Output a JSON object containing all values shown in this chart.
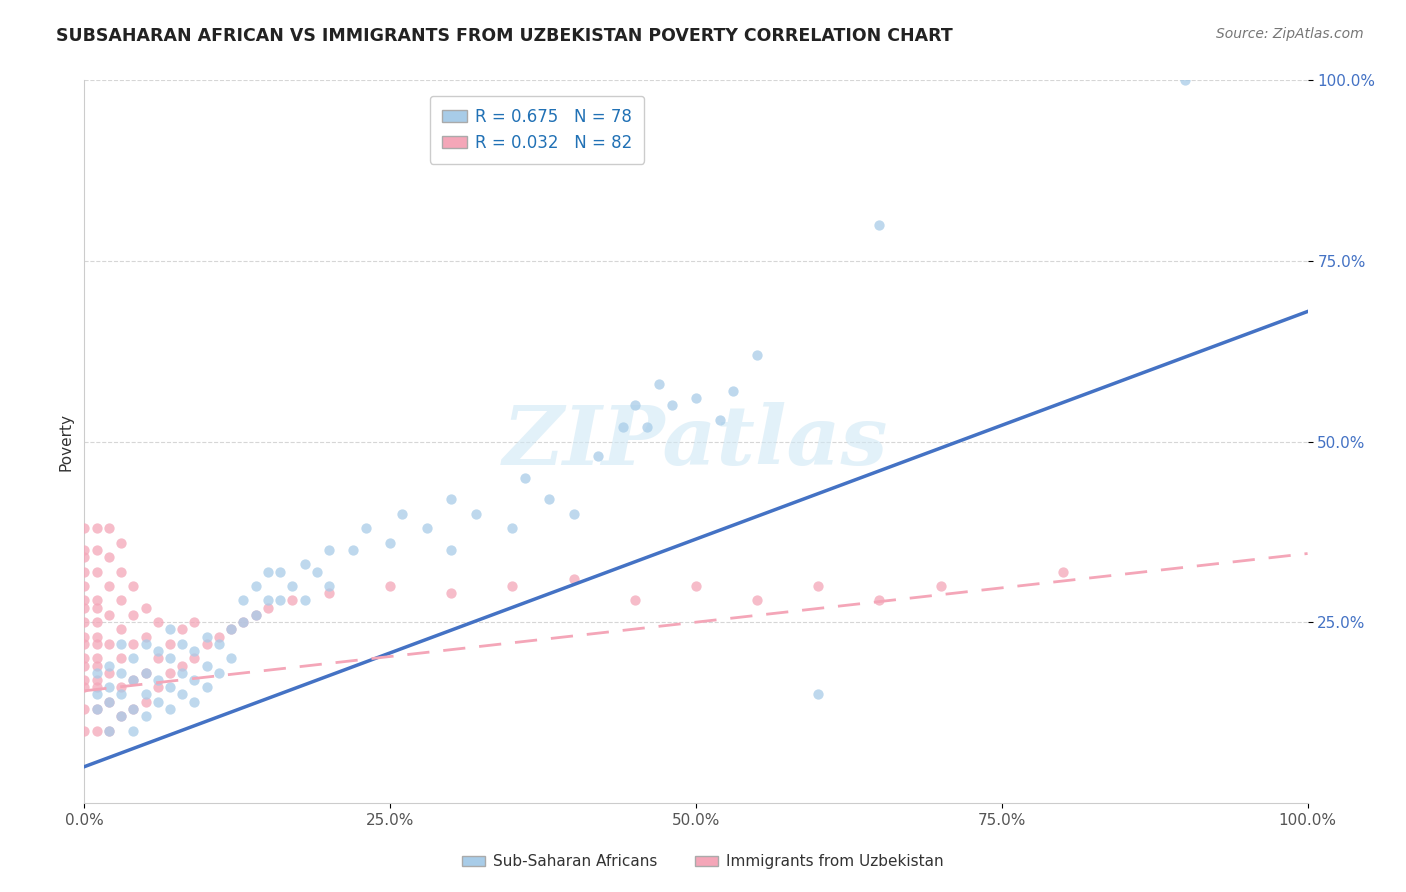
{
  "title": "SUBSAHARAN AFRICAN VS IMMIGRANTS FROM UZBEKISTAN POVERTY CORRELATION CHART",
  "source": "Source: ZipAtlas.com",
  "ylabel": "Poverty",
  "watermark": "ZIPatlas",
  "legend1_label": "Sub-Saharan Africans",
  "legend2_label": "Immigrants from Uzbekistan",
  "R1": 0.675,
  "N1": 78,
  "R2": 0.032,
  "N2": 82,
  "color1": "#a8cce8",
  "color2": "#f4a6b8",
  "color1_line": "#4472c4",
  "color2_line": "#f4a6b8",
  "xlim": [
    0,
    1.0
  ],
  "ylim": [
    0,
    1.0
  ],
  "xticks": [
    0.0,
    0.25,
    0.5,
    0.75,
    1.0
  ],
  "yticks": [
    0.25,
    0.5,
    0.75,
    1.0
  ],
  "xticklabels": [
    "0.0%",
    "25.0%",
    "50.0%",
    "75.0%",
    "100.0%"
  ],
  "yticklabels": [
    "25.0%",
    "50.0%",
    "75.0%",
    "100.0%"
  ],
  "blue_line_x": [
    0.0,
    1.0
  ],
  "blue_line_y": [
    0.05,
    0.68
  ],
  "pink_line_x": [
    0.0,
    1.0
  ],
  "pink_line_y": [
    0.155,
    0.345
  ],
  "blue_scatter": [
    [
      0.01,
      0.13
    ],
    [
      0.01,
      0.15
    ],
    [
      0.01,
      0.18
    ],
    [
      0.02,
      0.1
    ],
    [
      0.02,
      0.14
    ],
    [
      0.02,
      0.16
    ],
    [
      0.02,
      0.19
    ],
    [
      0.03,
      0.12
    ],
    [
      0.03,
      0.15
    ],
    [
      0.03,
      0.18
    ],
    [
      0.03,
      0.22
    ],
    [
      0.04,
      0.1
    ],
    [
      0.04,
      0.13
    ],
    [
      0.04,
      0.17
    ],
    [
      0.04,
      0.2
    ],
    [
      0.05,
      0.12
    ],
    [
      0.05,
      0.15
    ],
    [
      0.05,
      0.18
    ],
    [
      0.05,
      0.22
    ],
    [
      0.06,
      0.14
    ],
    [
      0.06,
      0.17
    ],
    [
      0.06,
      0.21
    ],
    [
      0.07,
      0.13
    ],
    [
      0.07,
      0.16
    ],
    [
      0.07,
      0.2
    ],
    [
      0.07,
      0.24
    ],
    [
      0.08,
      0.15
    ],
    [
      0.08,
      0.18
    ],
    [
      0.08,
      0.22
    ],
    [
      0.09,
      0.14
    ],
    [
      0.09,
      0.17
    ],
    [
      0.09,
      0.21
    ],
    [
      0.1,
      0.16
    ],
    [
      0.1,
      0.19
    ],
    [
      0.1,
      0.23
    ],
    [
      0.11,
      0.18
    ],
    [
      0.11,
      0.22
    ],
    [
      0.12,
      0.2
    ],
    [
      0.12,
      0.24
    ],
    [
      0.13,
      0.25
    ],
    [
      0.13,
      0.28
    ],
    [
      0.14,
      0.26
    ],
    [
      0.14,
      0.3
    ],
    [
      0.15,
      0.28
    ],
    [
      0.15,
      0.32
    ],
    [
      0.16,
      0.28
    ],
    [
      0.16,
      0.32
    ],
    [
      0.17,
      0.3
    ],
    [
      0.18,
      0.28
    ],
    [
      0.18,
      0.33
    ],
    [
      0.19,
      0.32
    ],
    [
      0.2,
      0.3
    ],
    [
      0.2,
      0.35
    ],
    [
      0.22,
      0.35
    ],
    [
      0.23,
      0.38
    ],
    [
      0.25,
      0.36
    ],
    [
      0.26,
      0.4
    ],
    [
      0.28,
      0.38
    ],
    [
      0.3,
      0.35
    ],
    [
      0.3,
      0.42
    ],
    [
      0.32,
      0.4
    ],
    [
      0.35,
      0.38
    ],
    [
      0.36,
      0.45
    ],
    [
      0.38,
      0.42
    ],
    [
      0.4,
      0.4
    ],
    [
      0.42,
      0.48
    ],
    [
      0.44,
      0.52
    ],
    [
      0.45,
      0.55
    ],
    [
      0.46,
      0.52
    ],
    [
      0.47,
      0.58
    ],
    [
      0.48,
      0.55
    ],
    [
      0.5,
      0.56
    ],
    [
      0.52,
      0.53
    ],
    [
      0.53,
      0.57
    ],
    [
      0.55,
      0.62
    ],
    [
      0.9,
      1.0
    ],
    [
      0.65,
      0.8
    ],
    [
      0.6,
      0.15
    ]
  ],
  "pink_scatter": [
    [
      0.0,
      0.1
    ],
    [
      0.0,
      0.13
    ],
    [
      0.0,
      0.16
    ],
    [
      0.0,
      0.19
    ],
    [
      0.0,
      0.22
    ],
    [
      0.0,
      0.25
    ],
    [
      0.0,
      0.28
    ],
    [
      0.0,
      0.32
    ],
    [
      0.0,
      0.35
    ],
    [
      0.0,
      0.38
    ],
    [
      0.0,
      0.17
    ],
    [
      0.0,
      0.2
    ],
    [
      0.0,
      0.23
    ],
    [
      0.0,
      0.27
    ],
    [
      0.0,
      0.3
    ],
    [
      0.0,
      0.34
    ],
    [
      0.01,
      0.1
    ],
    [
      0.01,
      0.13
    ],
    [
      0.01,
      0.16
    ],
    [
      0.01,
      0.19
    ],
    [
      0.01,
      0.22
    ],
    [
      0.01,
      0.25
    ],
    [
      0.01,
      0.28
    ],
    [
      0.01,
      0.32
    ],
    [
      0.01,
      0.35
    ],
    [
      0.01,
      0.38
    ],
    [
      0.01,
      0.17
    ],
    [
      0.01,
      0.2
    ],
    [
      0.01,
      0.23
    ],
    [
      0.01,
      0.27
    ],
    [
      0.02,
      0.1
    ],
    [
      0.02,
      0.14
    ],
    [
      0.02,
      0.18
    ],
    [
      0.02,
      0.22
    ],
    [
      0.02,
      0.26
    ],
    [
      0.02,
      0.3
    ],
    [
      0.02,
      0.34
    ],
    [
      0.02,
      0.38
    ],
    [
      0.03,
      0.12
    ],
    [
      0.03,
      0.16
    ],
    [
      0.03,
      0.2
    ],
    [
      0.03,
      0.24
    ],
    [
      0.03,
      0.28
    ],
    [
      0.03,
      0.32
    ],
    [
      0.03,
      0.36
    ],
    [
      0.04,
      0.13
    ],
    [
      0.04,
      0.17
    ],
    [
      0.04,
      0.22
    ],
    [
      0.04,
      0.26
    ],
    [
      0.04,
      0.3
    ],
    [
      0.05,
      0.14
    ],
    [
      0.05,
      0.18
    ],
    [
      0.05,
      0.23
    ],
    [
      0.05,
      0.27
    ],
    [
      0.06,
      0.16
    ],
    [
      0.06,
      0.2
    ],
    [
      0.06,
      0.25
    ],
    [
      0.07,
      0.18
    ],
    [
      0.07,
      0.22
    ],
    [
      0.08,
      0.19
    ],
    [
      0.08,
      0.24
    ],
    [
      0.09,
      0.2
    ],
    [
      0.09,
      0.25
    ],
    [
      0.1,
      0.22
    ],
    [
      0.11,
      0.23
    ],
    [
      0.12,
      0.24
    ],
    [
      0.13,
      0.25
    ],
    [
      0.14,
      0.26
    ],
    [
      0.15,
      0.27
    ],
    [
      0.17,
      0.28
    ],
    [
      0.2,
      0.29
    ],
    [
      0.25,
      0.3
    ],
    [
      0.3,
      0.29
    ],
    [
      0.35,
      0.3
    ],
    [
      0.4,
      0.31
    ],
    [
      0.45,
      0.28
    ],
    [
      0.5,
      0.3
    ],
    [
      0.55,
      0.28
    ],
    [
      0.6,
      0.3
    ],
    [
      0.65,
      0.28
    ],
    [
      0.7,
      0.3
    ],
    [
      0.8,
      0.32
    ]
  ]
}
